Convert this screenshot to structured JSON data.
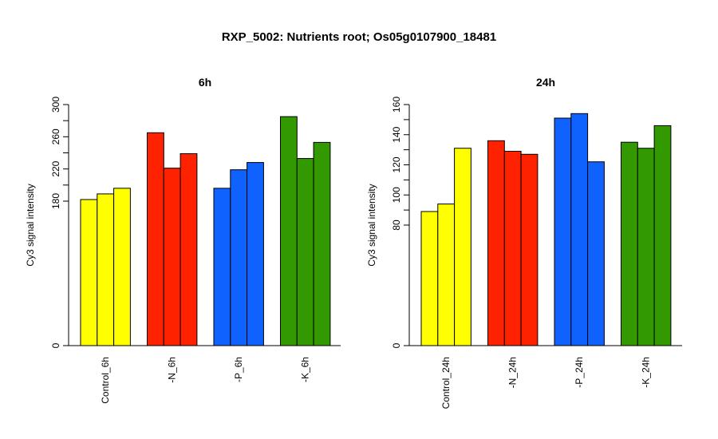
{
  "title": "RXP_5002: Nutrients root; Os05g0107900_18481",
  "chart_data": [
    {
      "type": "bar",
      "title": "6h",
      "ylabel": "Cy3 signal intensity",
      "categories": [
        "Control_6h",
        "-N_6h",
        "-P_6h",
        "-K_6h"
      ],
      "groups": [
        {
          "label": "Control_6h",
          "color": "#FFFF00",
          "values": [
            182,
            189,
            196
          ]
        },
        {
          "label": "-N_6h",
          "color": "#FF2200",
          "values": [
            265,
            221,
            239
          ]
        },
        {
          "label": "-P_6h",
          "color": "#0F62FE",
          "values": [
            196,
            219,
            228
          ]
        },
        {
          "label": "-K_6h",
          "color": "#339900",
          "values": [
            285,
            233,
            253
          ]
        }
      ],
      "yticks": [
        "0",
        "180",
        "220",
        "260",
        "300"
      ],
      "ylim": [
        0,
        300
      ]
    },
    {
      "type": "bar",
      "title": "24h",
      "ylabel": "Cy3 signal intensity",
      "categories": [
        "Control_24h",
        "-N_24h",
        "-P_24h",
        "-K_24h"
      ],
      "groups": [
        {
          "label": "Control_24h",
          "color": "#FFFF00",
          "values": [
            89,
            94,
            131
          ]
        },
        {
          "label": "-N_24h",
          "color": "#FF2200",
          "values": [
            136,
            129,
            127
          ]
        },
        {
          "label": "-P_24h",
          "color": "#0F62FE",
          "values": [
            151,
            154,
            122
          ]
        },
        {
          "label": "-K_24h",
          "color": "#339900",
          "values": [
            135,
            131,
            146
          ]
        }
      ],
      "yticks": [
        "0",
        "80",
        "100",
        "120",
        "140",
        "160"
      ],
      "ylim": [
        0,
        160
      ]
    }
  ]
}
